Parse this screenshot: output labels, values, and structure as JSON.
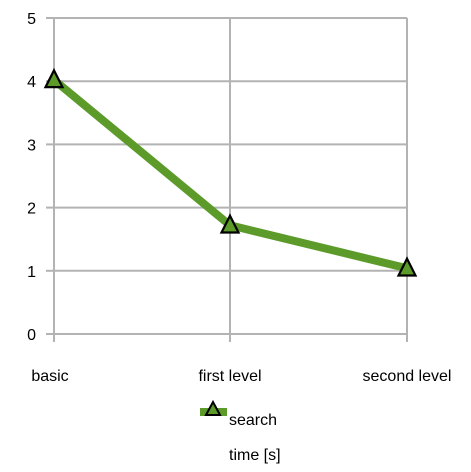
{
  "chart_data": {
    "type": "line",
    "title": "",
    "xlabel": "",
    "ylabel": "",
    "categories": [
      "basic",
      "first level",
      "second level"
    ],
    "ylim": [
      0,
      5
    ],
    "yticks": [
      "0",
      "1",
      "2",
      "3",
      "4",
      "5"
    ],
    "grid": true,
    "legend": "bottom",
    "series": [
      {
        "name": "search time [s]",
        "legend_lines": [
          "search",
          "time [s]"
        ],
        "values": [
          4.02,
          1.72,
          1.04
        ],
        "color": "#5c9b2a",
        "marker": "triangle",
        "marker_fill": "#5c9b2a",
        "marker_stroke": "#000000"
      }
    ],
    "colors": {
      "grid": "#b3b3b3",
      "axis": "#b3b3b3"
    }
  }
}
